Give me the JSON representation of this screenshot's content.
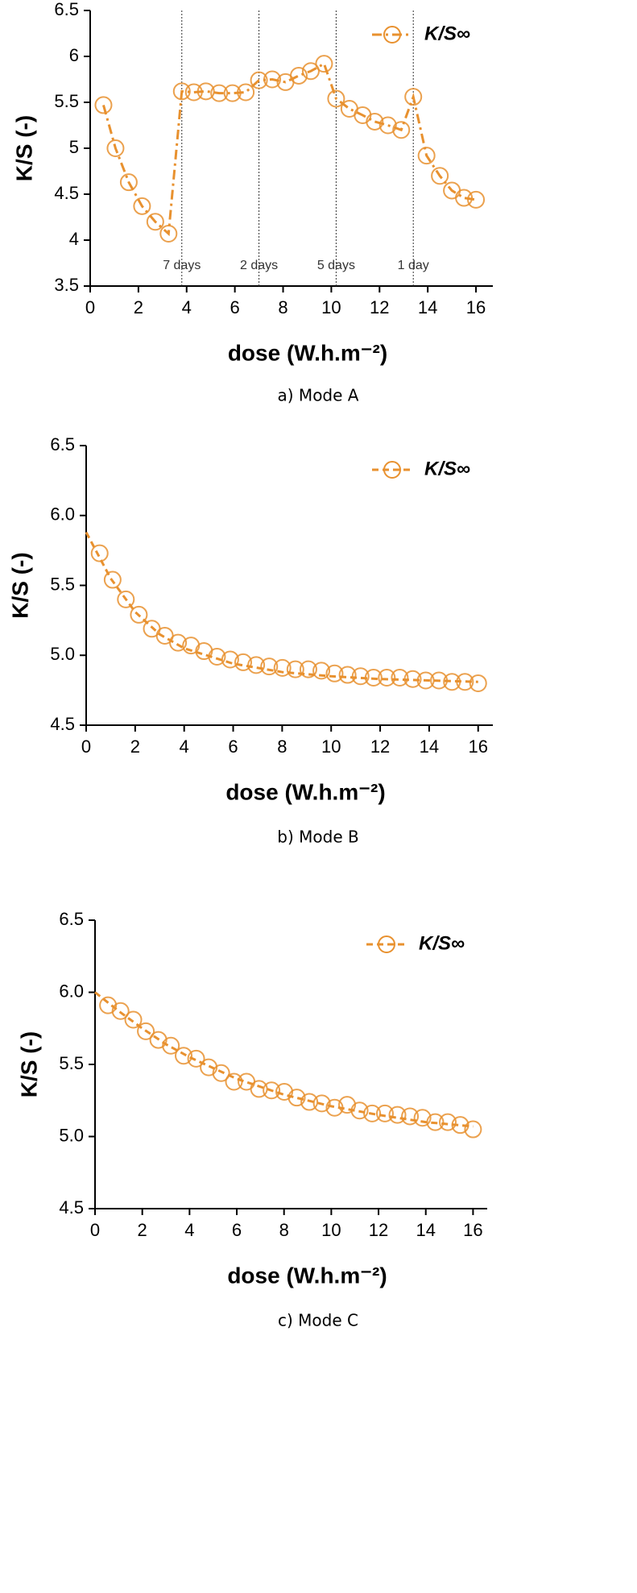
{
  "chart_data": [
    {
      "type": "line",
      "caption": "a) Mode A",
      "xlabel": "dose (W.h.m⁻²)",
      "ylabel": "K/S (-)",
      "xlim": [
        0,
        16.7
      ],
      "ylim": [
        3.5,
        6.5
      ],
      "xticks": [
        0,
        2,
        4,
        6,
        8,
        10,
        12,
        14,
        16
      ],
      "yticks": [
        3.5,
        4.0,
        4.5,
        5.0,
        5.5,
        6.0,
        6.5
      ],
      "legend": "upper right",
      "linestyle": "dashdot",
      "vlines": [
        {
          "x": 3.8,
          "label": "7 days"
        },
        {
          "x": 7.0,
          "label": "2 days"
        },
        {
          "x": 10.2,
          "label": "5 days"
        },
        {
          "x": 13.4,
          "label": "1 day"
        }
      ],
      "series": [
        {
          "name": "K/S∞",
          "color": "#e8912f",
          "x": [
            0.55,
            1.05,
            1.6,
            2.15,
            2.7,
            3.25,
            3.8,
            4.3,
            4.8,
            5.35,
            5.9,
            6.45,
            7.0,
            7.55,
            8.1,
            8.65,
            9.15,
            9.7,
            10.2,
            10.75,
            11.3,
            11.8,
            12.35,
            12.9,
            13.4,
            13.95,
            14.5,
            15.0,
            15.5,
            16.0
          ],
          "values": [
            5.47,
            5.0,
            4.63,
            4.37,
            4.2,
            4.07,
            5.62,
            5.61,
            5.62,
            5.6,
            5.6,
            5.61,
            5.74,
            5.75,
            5.72,
            5.79,
            5.84,
            5.92,
            5.54,
            5.43,
            5.36,
            5.29,
            5.25,
            5.2,
            5.56,
            4.92,
            4.7,
            4.54,
            4.46,
            4.44
          ]
        }
      ]
    },
    {
      "type": "line",
      "caption": "b) Mode B",
      "xlabel": "dose (W.h.m⁻²)",
      "ylabel": "K/S (-)",
      "xlim": [
        0,
        16.6
      ],
      "ylim": [
        4.5,
        6.5
      ],
      "xticks": [
        0,
        2,
        4,
        6,
        8,
        10,
        12,
        14,
        16
      ],
      "yticks": [
        4.5,
        {
          "value": 5,
          "label": "5.0"
        },
        5.5,
        {
          "value": 6,
          "label": "6.0"
        },
        6.5
      ],
      "legend": "upper right",
      "linestyle": "dashed",
      "series": [
        {
          "name": "K/S∞",
          "color": "#e8912f",
          "x": [
            0.55,
            1.08,
            1.62,
            2.15,
            2.68,
            3.21,
            3.75,
            4.28,
            4.81,
            5.34,
            5.88,
            6.41,
            6.94,
            7.47,
            8.01,
            8.54,
            9.07,
            9.6,
            10.14,
            10.67,
            11.2,
            11.73,
            12.27,
            12.8,
            13.33,
            13.86,
            14.4,
            14.93,
            15.46,
            16.0
          ],
          "values": [
            5.73,
            5.54,
            5.4,
            5.29,
            5.19,
            5.14,
            5.09,
            5.07,
            5.03,
            4.99,
            4.97,
            4.95,
            4.93,
            4.92,
            4.91,
            4.9,
            4.9,
            4.89,
            4.87,
            4.86,
            4.85,
            4.84,
            4.84,
            4.84,
            4.83,
            4.82,
            4.82,
            4.81,
            4.81,
            4.8
          ]
        }
      ],
      "fit": {
        "x": [
          0,
          1,
          2,
          3,
          4,
          6,
          8,
          10,
          12,
          14,
          16
        ],
        "values": [
          5.88,
          5.55,
          5.31,
          5.15,
          5.05,
          4.94,
          4.88,
          4.85,
          4.83,
          4.82,
          4.81
        ]
      }
    },
    {
      "type": "line",
      "caption": "c) Mode C",
      "xlabel": "dose (W.h.m⁻²)",
      "ylabel": "K/S (-)",
      "xlim": [
        0,
        16.6
      ],
      "ylim": [
        4.5,
        6.5
      ],
      "xticks": [
        0,
        2,
        4,
        6,
        8,
        10,
        12,
        14,
        16
      ],
      "yticks": [
        4.5,
        {
          "value": 5,
          "label": "5.0"
        },
        5.5,
        {
          "value": 6,
          "label": "6.0"
        },
        6.5
      ],
      "legend": "upper right",
      "linestyle": "dashed",
      "series": [
        {
          "name": "K/S∞",
          "color": "#e8912f",
          "x": [
            0.55,
            1.08,
            1.62,
            2.15,
            2.68,
            3.21,
            3.75,
            4.28,
            4.81,
            5.34,
            5.88,
            6.41,
            6.94,
            7.47,
            8.01,
            8.54,
            9.07,
            9.6,
            10.14,
            10.67,
            11.2,
            11.73,
            12.27,
            12.8,
            13.33,
            13.86,
            14.4,
            14.93,
            15.46,
            16.0
          ],
          "values": [
            5.91,
            5.87,
            5.81,
            5.73,
            5.67,
            5.63,
            5.56,
            5.54,
            5.48,
            5.44,
            5.38,
            5.38,
            5.33,
            5.32,
            5.31,
            5.27,
            5.24,
            5.23,
            5.2,
            5.22,
            5.18,
            5.16,
            5.16,
            5.15,
            5.14,
            5.13,
            5.1,
            5.1,
            5.08,
            5.05
          ]
        }
      ],
      "fit": {
        "x": [
          0,
          1,
          2,
          3,
          4,
          6,
          8,
          10,
          12,
          14,
          16
        ],
        "values": [
          6.0,
          5.87,
          5.75,
          5.64,
          5.55,
          5.4,
          5.29,
          5.21,
          5.15,
          5.1,
          5.07
        ]
      }
    }
  ]
}
